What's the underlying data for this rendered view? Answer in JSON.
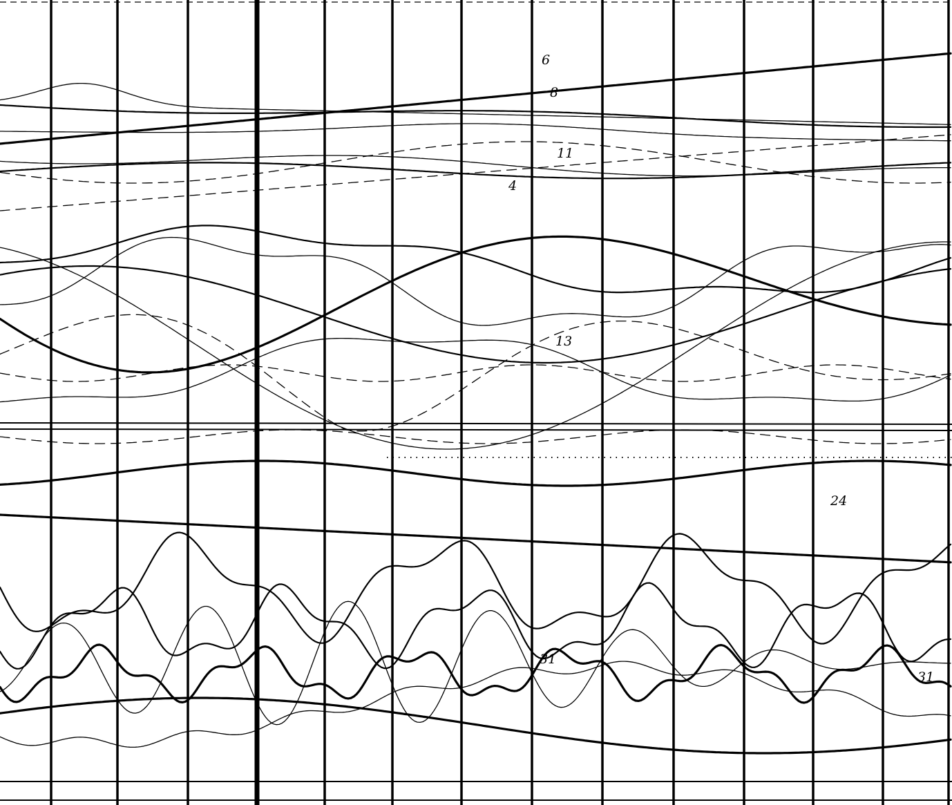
{
  "chart_data": {
    "type": "line",
    "title": "",
    "xlabel": "",
    "ylabel": "",
    "grid": true,
    "annotations": [
      {
        "text": "6"
      },
      {
        "text": "8"
      },
      {
        "text": "11"
      },
      {
        "text": "4"
      },
      {
        "text": "13"
      },
      {
        "text": "24"
      },
      {
        "text": "31"
      },
      {
        "text": "31"
      }
    ]
  }
}
